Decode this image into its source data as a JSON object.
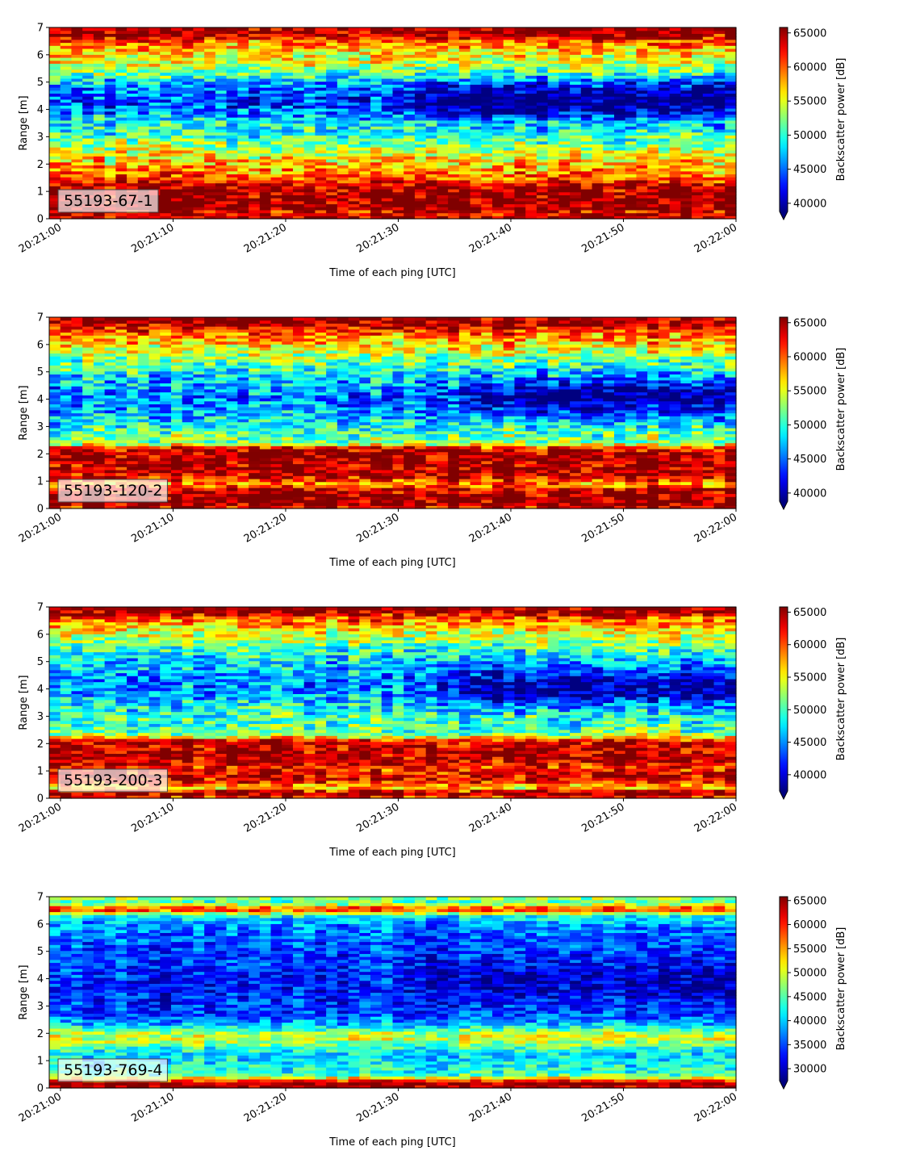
{
  "chart_data": [
    {
      "type": "heatmap",
      "label": "55193-67-1",
      "xlabel": "Time of each ping [UTC]",
      "ylabel": "Range [m]",
      "colorbar_label": "Backscatter power [dB]",
      "x_ticks": [
        "20:21:00",
        "20:21:10",
        "20:21:20",
        "20:21:30",
        "20:21:40",
        "20:21:50",
        "20:22:00"
      ],
      "xlim": [
        "20:20:59",
        "20:22:00"
      ],
      "ylim": [
        0,
        7
      ],
      "y_ticks": [
        0,
        1,
        2,
        3,
        4,
        5,
        6,
        7
      ],
      "cbar_ticks": [
        40000,
        45000,
        50000,
        55000,
        60000,
        65000
      ],
      "clim": [
        38800,
        65800
      ],
      "colormap": "jet",
      "profile": [
        [
          0.0,
          65500
        ],
        [
          0.25,
          62000
        ],
        [
          0.35,
          65500
        ],
        [
          0.9,
          65500
        ],
        [
          1.1,
          64500
        ],
        [
          1.3,
          63000
        ],
        [
          1.6,
          59500
        ],
        [
          2.0,
          57500
        ],
        [
          2.4,
          55000
        ],
        [
          2.8,
          52000
        ],
        [
          3.2,
          49500
        ],
        [
          3.6,
          48500
        ],
        [
          3.9,
          45500
        ],
        [
          4.3,
          43500
        ],
        [
          4.7,
          45000
        ],
        [
          5.0,
          47000
        ],
        [
          5.3,
          51000
        ],
        [
          5.7,
          54500
        ],
        [
          6.1,
          56500
        ],
        [
          6.5,
          60000
        ],
        [
          6.7,
          64500
        ],
        [
          7.0,
          65500
        ]
      ],
      "dark_feature": {
        "time_from": "20:21:28",
        "range_m": 4.4,
        "strength": 6000
      }
    },
    {
      "type": "heatmap",
      "label": "55193-120-2",
      "xlabel": "Time of each ping [UTC]",
      "ylabel": "Range [m]",
      "colorbar_label": "Backscatter power [dB]",
      "x_ticks": [
        "20:21:00",
        "20:21:10",
        "20:21:20",
        "20:21:30",
        "20:21:40",
        "20:21:50",
        "20:22:00"
      ],
      "xlim": [
        "20:20:59",
        "20:22:00"
      ],
      "ylim": [
        0,
        7
      ],
      "y_ticks": [
        0,
        1,
        2,
        3,
        4,
        5,
        6,
        7
      ],
      "cbar_ticks": [
        40000,
        45000,
        50000,
        55000,
        60000,
        65000
      ],
      "clim": [
        38800,
        65800
      ],
      "colormap": "jet",
      "profile": [
        [
          0.0,
          62000
        ],
        [
          0.15,
          65500
        ],
        [
          0.5,
          65500
        ],
        [
          0.7,
          64000
        ],
        [
          0.9,
          58000
        ],
        [
          1.1,
          62000
        ],
        [
          1.3,
          65000
        ],
        [
          1.6,
          64500
        ],
        [
          2.0,
          65000
        ],
        [
          2.2,
          63000
        ],
        [
          2.4,
          53000
        ],
        [
          2.8,
          51000
        ],
        [
          3.2,
          48500
        ],
        [
          3.6,
          46500
        ],
        [
          4.0,
          45500
        ],
        [
          4.4,
          46000
        ],
        [
          4.8,
          48000
        ],
        [
          5.2,
          50500
        ],
        [
          5.6,
          53000
        ],
        [
          6.0,
          56500
        ],
        [
          6.4,
          59500
        ],
        [
          6.7,
          64500
        ],
        [
          7.0,
          65500
        ]
      ],
      "dark_feature": {
        "time_from": "20:21:33",
        "range_m": 4.1,
        "strength": 6500
      }
    },
    {
      "type": "heatmap",
      "label": "55193-200-3",
      "xlabel": "Time of each ping [UTC]",
      "ylabel": "Range [m]",
      "colorbar_label": "Backscatter power [dB]",
      "x_ticks": [
        "20:21:00",
        "20:21:10",
        "20:21:20",
        "20:21:30",
        "20:21:40",
        "20:21:50",
        "20:22:00"
      ],
      "xlim": [
        "20:20:59",
        "20:22:00"
      ],
      "ylim": [
        0,
        7
      ],
      "y_ticks": [
        0,
        1,
        2,
        3,
        4,
        5,
        6,
        7
      ],
      "cbar_ticks": [
        40000,
        45000,
        50000,
        55000,
        60000,
        65000
      ],
      "clim": [
        37500,
        65800
      ],
      "colormap": "jet",
      "profile": [
        [
          0.0,
          60000
        ],
        [
          0.2,
          65500
        ],
        [
          0.4,
          56000
        ],
        [
          0.6,
          61000
        ],
        [
          0.8,
          64000
        ],
        [
          1.1,
          61000
        ],
        [
          1.4,
          64500
        ],
        [
          1.8,
          64000
        ],
        [
          2.1,
          63500
        ],
        [
          2.3,
          53000
        ],
        [
          2.6,
          50000
        ],
        [
          3.0,
          49500
        ],
        [
          3.4,
          48000
        ],
        [
          3.8,
          45500
        ],
        [
          4.2,
          44500
        ],
        [
          4.6,
          45500
        ],
        [
          5.0,
          47000
        ],
        [
          5.4,
          49000
        ],
        [
          5.8,
          52500
        ],
        [
          6.2,
          56000
        ],
        [
          6.6,
          60000
        ],
        [
          6.8,
          64500
        ],
        [
          7.0,
          65500
        ]
      ],
      "dark_feature": {
        "time_from": "20:21:32",
        "range_m": 4.0,
        "strength": 6500
      }
    },
    {
      "type": "heatmap",
      "label": "55193-769-4",
      "xlabel": "Time of each ping [UTC]",
      "ylabel": "Range [m]",
      "colorbar_label": "Backscatter power [dB]",
      "x_ticks": [
        "20:21:00",
        "20:21:10",
        "20:21:20",
        "20:21:30",
        "20:21:40",
        "20:21:50",
        "20:22:00"
      ],
      "xlim": [
        "20:20:59",
        "20:22:00"
      ],
      "ylim": [
        0,
        7
      ],
      "y_ticks": [
        0,
        1,
        2,
        3,
        4,
        5,
        6,
        7
      ],
      "cbar_ticks": [
        30000,
        35000,
        40000,
        45000,
        50000,
        55000,
        60000,
        65000
      ],
      "clim": [
        27500,
        65800
      ],
      "colormap": "jet",
      "profile": [
        [
          0.0,
          62000
        ],
        [
          0.15,
          65500
        ],
        [
          0.3,
          57000
        ],
        [
          0.5,
          44000
        ],
        [
          0.8,
          42000
        ],
        [
          1.2,
          40000
        ],
        [
          1.5,
          44000
        ],
        [
          1.8,
          50000
        ],
        [
          2.0,
          49000
        ],
        [
          2.3,
          40000
        ],
        [
          2.6,
          35000
        ],
        [
          3.0,
          34000
        ],
        [
          3.5,
          33000
        ],
        [
          4.0,
          33500
        ],
        [
          4.5,
          34000
        ],
        [
          5.0,
          34500
        ],
        [
          5.5,
          35500
        ],
        [
          6.0,
          37500
        ],
        [
          6.3,
          42000
        ],
        [
          6.55,
          61000
        ],
        [
          6.8,
          44000
        ],
        [
          7.0,
          49000
        ]
      ],
      "dark_feature": {
        "time_from": "20:21:32",
        "range_m": 4.0,
        "strength": 4000
      }
    }
  ]
}
